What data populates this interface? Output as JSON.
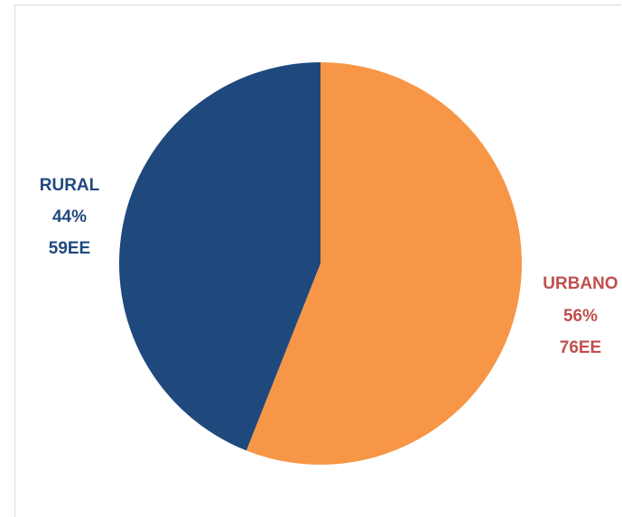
{
  "chart_data": {
    "type": "pie",
    "title": "",
    "slices": [
      {
        "name": "URBANO",
        "value": 56,
        "percent_label": "56%",
        "count_label": "76EE",
        "color": "#f79646",
        "label_color": "#c0504d"
      },
      {
        "name": "RURAL",
        "value": 44,
        "percent_label": "44%",
        "count_label": "59EE",
        "color": "#1f497d",
        "label_color": "#1f497d"
      }
    ],
    "legend": false
  }
}
